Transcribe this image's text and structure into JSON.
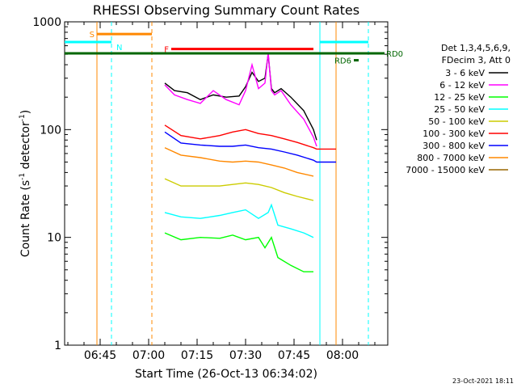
{
  "chart_data": {
    "type": "line",
    "title": "RHESSI Observing Summary Count Rates",
    "xlabel": "Start Time (26-Oct-13 06:34:02)",
    "ylabel_main": "Count Rate (s",
    "ylabel_sup1": "-1",
    "ylabel_mid": " detector",
    "ylabel_sup2": "-1",
    "ylabel_end": ")",
    "yscale": "log",
    "ylim": [
      1,
      1000
    ],
    "xlim_minutes": [
      0,
      100
    ],
    "x_unit": "minutes after 06:34:02",
    "xticks": [
      {
        "t": 11,
        "label": "06:45"
      },
      {
        "t": 26,
        "label": "07:00"
      },
      {
        "t": 41,
        "label": "07:15"
      },
      {
        "t": 56,
        "label": "07:30"
      },
      {
        "t": 71,
        "label": "07:45"
      },
      {
        "t": 86,
        "label": "08:00"
      }
    ],
    "yticks": [
      {
        "v": 1,
        "label": "1"
      },
      {
        "v": 10,
        "label": "10"
      },
      {
        "v": 100,
        "label": "100"
      },
      {
        "v": 1000,
        "label": "1000"
      }
    ],
    "legend": {
      "header1": "Det 1,3,4,5,6,9,",
      "header2": "FDecim 3, Att 0",
      "position": "right"
    },
    "date_stamp": "23-Oct-2021 18:11",
    "series": [
      {
        "name": "3 - 6 keV",
        "color": "#000000",
        "x": [
          31,
          34,
          38,
          42,
          46,
          50,
          54,
          56,
          58,
          60,
          62,
          63,
          64,
          65,
          67,
          70,
          74,
          77,
          78
        ],
        "y": [
          270,
          230,
          220,
          190,
          210,
          200,
          205,
          250,
          340,
          280,
          300,
          500,
          240,
          220,
          240,
          200,
          150,
          100,
          80
        ]
      },
      {
        "name": "6 - 12 keV",
        "color": "#ff00ff",
        "x": [
          31,
          34,
          38,
          42,
          46,
          50,
          54,
          56,
          58,
          60,
          62,
          63,
          64,
          65,
          67,
          70,
          74,
          77,
          78
        ],
        "y": [
          260,
          210,
          190,
          175,
          230,
          190,
          170,
          230,
          400,
          240,
          270,
          520,
          230,
          210,
          230,
          170,
          125,
          85,
          70
        ]
      },
      {
        "name": "12 - 25 keV",
        "color": "#00ff00",
        "x": [
          31,
          36,
          42,
          48,
          52,
          56,
          60,
          62,
          64,
          66,
          70,
          74,
          77
        ],
        "y": [
          11,
          9.5,
          10,
          9.8,
          10.5,
          9.5,
          10,
          8,
          10,
          6.5,
          5.5,
          4.8,
          4.8
        ]
      },
      {
        "name": "25 - 50 keV",
        "color": "#00ffff",
        "x": [
          31,
          36,
          42,
          48,
          52,
          56,
          60,
          63,
          64,
          66,
          70,
          74,
          77
        ],
        "y": [
          17,
          15.5,
          15,
          16,
          17,
          18,
          15,
          17,
          20,
          13,
          12,
          11,
          10
        ]
      },
      {
        "name": "50 - 100 keV",
        "color": "#cccc00",
        "x": [
          31,
          36,
          42,
          48,
          52,
          56,
          60,
          64,
          68,
          72,
          77
        ],
        "y": [
          35,
          30,
          30,
          30,
          31,
          32,
          31,
          29,
          26,
          24,
          22
        ]
      },
      {
        "name": "100 - 300 keV",
        "color": "#ff0000",
        "x": [
          31,
          36,
          42,
          48,
          52,
          56,
          60,
          64,
          68,
          72,
          77,
          78,
          84
        ],
        "y": [
          110,
          88,
          82,
          88,
          95,
          100,
          92,
          88,
          82,
          76,
          68,
          66,
          66
        ]
      },
      {
        "name": "300 - 800 keV",
        "color": "#0000ff",
        "x": [
          31,
          36,
          42,
          48,
          52,
          56,
          60,
          64,
          68,
          72,
          77,
          78,
          84
        ],
        "y": [
          95,
          75,
          72,
          70,
          70,
          72,
          68,
          66,
          62,
          58,
          52,
          50,
          50
        ]
      },
      {
        "name": "800 - 7000 keV",
        "color": "#ff8800",
        "x": [
          31,
          36,
          42,
          48,
          52,
          56,
          60,
          64,
          68,
          72,
          77
        ],
        "y": [
          68,
          58,
          55,
          51,
          50,
          51,
          50,
          47,
          44,
          40,
          37
        ]
      },
      {
        "name": "7000 - 15000 keV",
        "color": "#996600",
        "x": [],
        "y": []
      }
    ],
    "flags": [
      {
        "label": "S",
        "color": "#ff8800",
        "t0": 10,
        "t1": 27,
        "level": 770
      },
      {
        "label": "N",
        "color": "#00ffff",
        "t0": 0,
        "t1": 14.5,
        "level": 650
      },
      {
        "label": "F",
        "color": "#ff0000",
        "t0": 33,
        "t1": 77,
        "level": 560
      },
      {
        "label": "RD0",
        "color": "#006600",
        "t0": 0,
        "t1": 99,
        "level": 510
      },
      {
        "label": "RD6",
        "color": "#006600",
        "t0": 89.5,
        "t1": 91,
        "level": 440
      },
      {
        "label": "",
        "color": "#00ffff",
        "t0": 79,
        "t1": 94,
        "level": 650
      }
    ],
    "vlines": [
      {
        "t": 10,
        "color": "#ff8800",
        "style": "solid"
      },
      {
        "t": 14.5,
        "color": "#00ffff",
        "style": "dashed"
      },
      {
        "t": 27,
        "color": "#ff8800",
        "style": "dashed"
      },
      {
        "t": 79,
        "color": "#00ffff",
        "style": "solid"
      },
      {
        "t": 84,
        "color": "#ff8800",
        "style": "solid"
      },
      {
        "t": 94,
        "color": "#00ffff",
        "style": "dashed"
      }
    ]
  }
}
